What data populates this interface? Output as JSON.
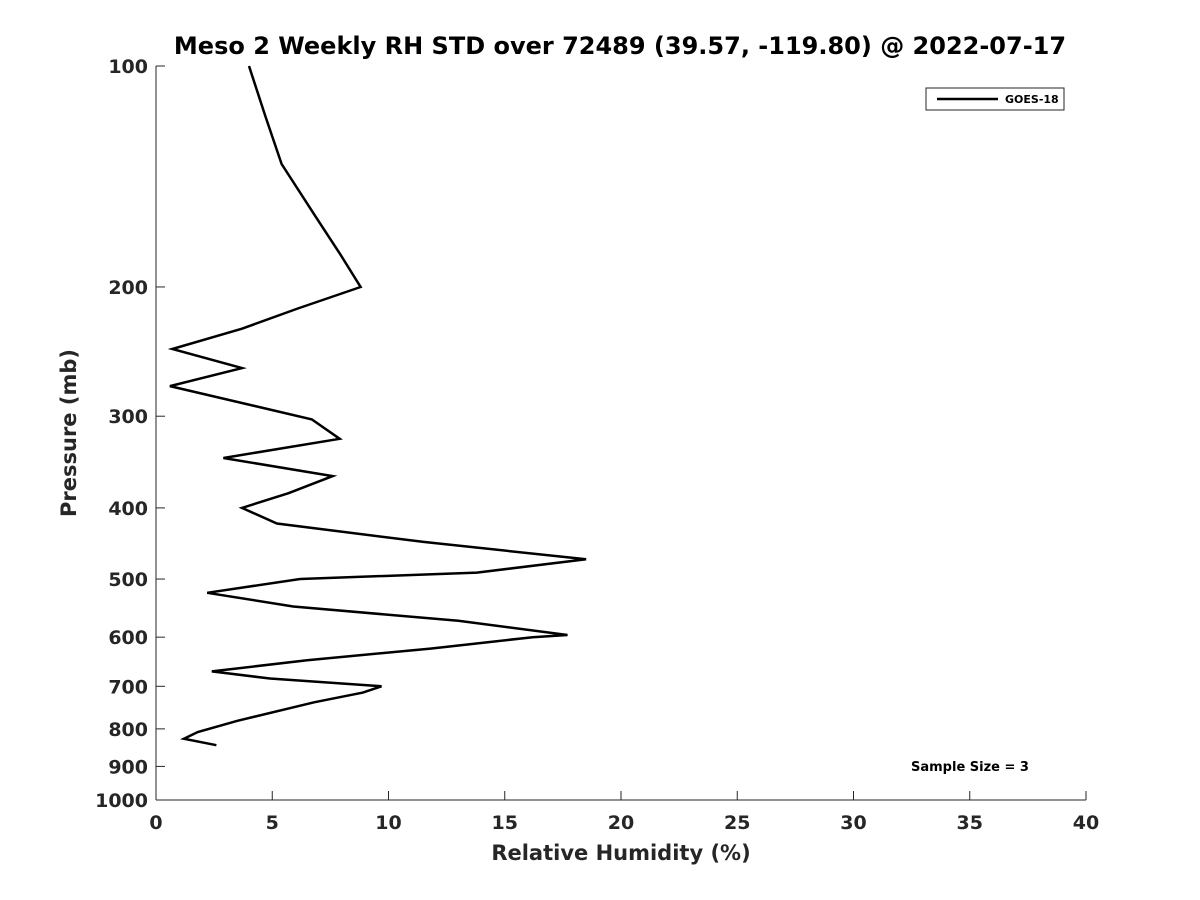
{
  "chart_data": {
    "type": "line",
    "title": "Meso 2 Weekly RH STD over 72489 (39.57, -119.80) @ 2022-07-17",
    "xlabel": "Relative Humidity (%)",
    "ylabel": "Pressure (mb)",
    "xlim": [
      0,
      40
    ],
    "ylim": [
      100,
      1000
    ],
    "y_scale": "log",
    "y_reversed": true,
    "grid": false,
    "legend_position": "top-right",
    "x_ticks": [
      "0",
      "5",
      "10",
      "15",
      "20",
      "25",
      "30",
      "35",
      "40"
    ],
    "y_ticks": [
      "100",
      "200",
      "300",
      "400",
      "500",
      "600",
      "700",
      "800",
      "900",
      "1000"
    ],
    "series": [
      {
        "name": "GOES-18",
        "color": "#000000",
        "x": [
          4.0,
          4.7,
          5.4,
          6.9,
          7.9,
          8.8,
          6.1,
          3.7,
          0.7,
          3.7,
          0.6,
          6.7,
          7.9,
          2.9,
          7.6,
          5.7,
          3.7,
          5.2,
          11.5,
          18.5,
          13.8,
          6.2,
          2.2,
          5.9,
          13.0,
          17.7,
          16.2,
          11.8,
          6.5,
          2.4,
          4.9,
          9.7,
          8.9,
          6.8,
          3.5,
          1.8,
          1.2,
          2.6
        ],
        "y": [
          100,
          117,
          136,
          161,
          180,
          200,
          214,
          228,
          243,
          258,
          273,
          303,
          322,
          342,
          362,
          382,
          400,
          420,
          445,
          470,
          490,
          500,
          522,
          545,
          570,
          596,
          600,
          622,
          645,
          668,
          683,
          700,
          714,
          736,
          780,
          808,
          825,
          842
        ]
      }
    ],
    "annotations": [
      "Sample Size = 3"
    ]
  }
}
